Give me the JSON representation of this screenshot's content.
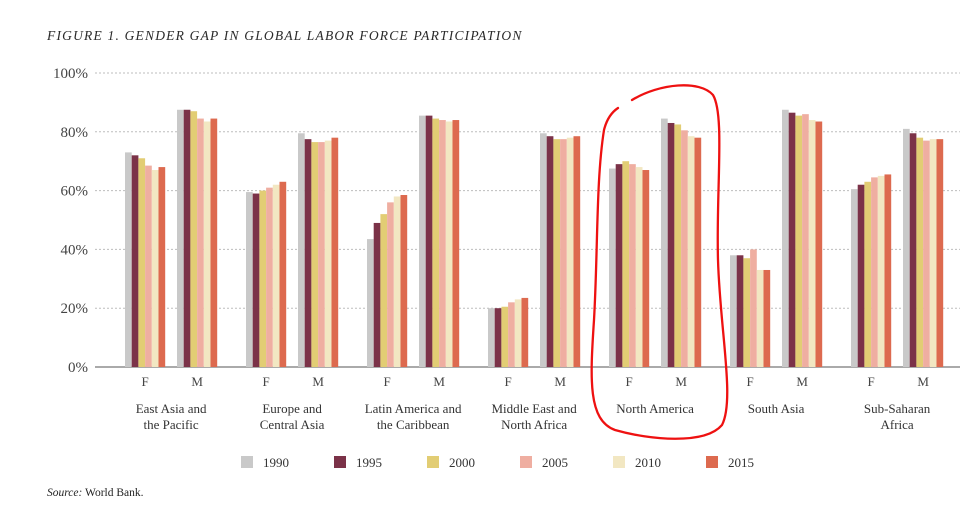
{
  "chart_data": {
    "type": "bar",
    "title": "FIGURE 1. GENDER GAP IN GLOBAL LABOR FORCE PARTICIPATION",
    "source_label": "Source:",
    "source_text": "World Bank.",
    "ylim": [
      0,
      100
    ],
    "yticks": [
      {
        "value": 0,
        "label": "0%"
      },
      {
        "value": 20,
        "label": "20%"
      },
      {
        "value": 40,
        "label": "40%"
      },
      {
        "value": 60,
        "label": "60%"
      },
      {
        "value": 80,
        "label": "80%"
      },
      {
        "value": 100,
        "label": "100%"
      }
    ],
    "grid": true,
    "legend_position": "bottom",
    "series": [
      {
        "name": "1990",
        "color": "#c9c9c9"
      },
      {
        "name": "1995",
        "color": "#7b3248"
      },
      {
        "name": "2000",
        "color": "#e2cd74"
      },
      {
        "name": "2005",
        "color": "#efaea1"
      },
      {
        "name": "2010",
        "color": "#f2e7c2"
      },
      {
        "name": "2015",
        "color": "#dd6a4f"
      }
    ],
    "regions": [
      {
        "name_lines": [
          "East Asia and",
          "the Pacific"
        ],
        "groups": [
          {
            "label": "F",
            "values": [
              73,
              72,
              71,
              68.5,
              67,
              68
            ]
          },
          {
            "label": "M",
            "values": [
              87.5,
              87.5,
              87,
              84.5,
              83.5,
              84.5
            ]
          }
        ]
      },
      {
        "name_lines": [
          "Europe and",
          "Central Asia"
        ],
        "groups": [
          {
            "label": "F",
            "values": [
              59.5,
              59,
              60,
              61,
              62,
              63
            ]
          },
          {
            "label": "M",
            "values": [
              79.5,
              77.5,
              76.5,
              76.5,
              77,
              78
            ]
          }
        ]
      },
      {
        "name_lines": [
          "Latin America and",
          "the Caribbean"
        ],
        "groups": [
          {
            "label": "F",
            "values": [
              43.5,
              49,
              52,
              56,
              58,
              58.5
            ]
          },
          {
            "label": "M",
            "values": [
              85.5,
              85.5,
              84.5,
              84,
              83.5,
              84
            ]
          }
        ]
      },
      {
        "name_lines": [
          "Middle East and",
          "North Africa"
        ],
        "groups": [
          {
            "label": "F",
            "values": [
              20,
              20,
              20.5,
              22,
              23,
              23.5
            ]
          },
          {
            "label": "M",
            "values": [
              79.5,
              78.5,
              77.5,
              77.5,
              78,
              78.5
            ]
          }
        ]
      },
      {
        "name_lines": [
          "North America"
        ],
        "groups": [
          {
            "label": "F",
            "values": [
              67.5,
              69,
              70,
              69,
              68,
              67
            ]
          },
          {
            "label": "M",
            "values": [
              84.5,
              83,
              82.5,
              80.5,
              78.5,
              78
            ]
          }
        ]
      },
      {
        "name_lines": [
          "South Asia"
        ],
        "groups": [
          {
            "label": "F",
            "values": [
              38,
              38,
              37,
              40,
              33,
              33
            ]
          },
          {
            "label": "M",
            "values": [
              87.5,
              86.5,
              85.5,
              86,
              84,
              83.5
            ]
          }
        ]
      },
      {
        "name_lines": [
          "Sub-Saharan",
          "Africa"
        ],
        "groups": [
          {
            "label": "F",
            "values": [
              60.5,
              62,
              63,
              64.5,
              65,
              65.5
            ]
          },
          {
            "label": "M",
            "values": [
              81,
              79.5,
              78,
              77,
              77.5,
              77.5
            ]
          }
        ]
      }
    ],
    "annotation": {
      "type": "hand-drawn-circle",
      "target": "North America",
      "color": "#ee1111"
    }
  }
}
